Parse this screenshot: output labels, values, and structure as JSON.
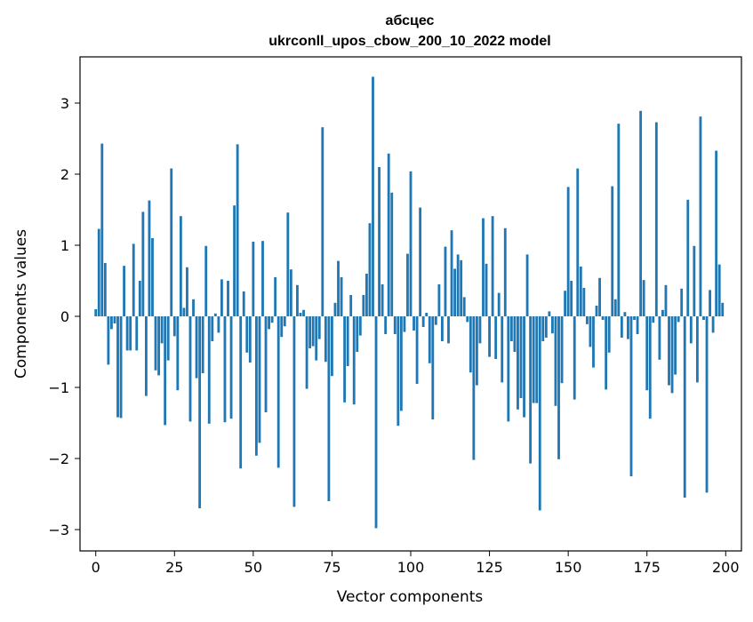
{
  "chart_data": {
    "type": "bar",
    "title": "абсцес",
    "subtitle": "ukrconll_upos_cbow_200_10_2022 model",
    "xlabel": "Vector components",
    "ylabel": "Components values",
    "xlim": [
      -5,
      205
    ],
    "ylim": [
      -3.3,
      3.65
    ],
    "xticks": [
      0,
      25,
      50,
      75,
      100,
      125,
      150,
      175,
      200
    ],
    "yticks": [
      -3,
      -2,
      -1,
      0,
      1,
      2,
      3
    ],
    "ytick_labels": [
      "−3",
      "−2",
      "−1",
      "0",
      "1",
      "2",
      "3"
    ],
    "grid": false,
    "bar_color": "#1f77b4",
    "x": [
      0,
      1,
      2,
      3,
      4,
      5,
      6,
      7,
      8,
      9,
      10,
      11,
      12,
      13,
      14,
      15,
      16,
      17,
      18,
      19,
      20,
      21,
      22,
      23,
      24,
      25,
      26,
      27,
      28,
      29,
      30,
      31,
      32,
      33,
      34,
      35,
      36,
      37,
      38,
      39,
      40,
      41,
      42,
      43,
      44,
      45,
      46,
      47,
      48,
      49,
      50,
      51,
      52,
      53,
      54,
      55,
      56,
      57,
      58,
      59,
      60,
      61,
      62,
      63,
      64,
      65,
      66,
      67,
      68,
      69,
      70,
      71,
      72,
      73,
      74,
      75,
      76,
      77,
      78,
      79,
      80,
      81,
      82,
      83,
      84,
      85,
      86,
      87,
      88,
      89,
      90,
      91,
      92,
      93,
      94,
      95,
      96,
      97,
      98,
      99,
      100,
      101,
      102,
      103,
      104,
      105,
      106,
      107,
      108,
      109,
      110,
      111,
      112,
      113,
      114,
      115,
      116,
      117,
      118,
      119,
      120,
      121,
      122,
      123,
      124,
      125,
      126,
      127,
      128,
      129,
      130,
      131,
      132,
      133,
      134,
      135,
      136,
      137,
      138,
      139,
      140,
      141,
      142,
      143,
      144,
      145,
      146,
      147,
      148,
      149,
      150,
      151,
      152,
      153,
      154,
      155,
      156,
      157,
      158,
      159,
      160,
      161,
      162,
      163,
      164,
      165,
      166,
      167,
      168,
      169,
      170,
      171,
      172,
      173,
      174,
      175,
      176,
      177,
      178,
      179,
      180,
      181,
      182,
      183,
      184,
      185,
      186,
      187,
      188,
      189,
      190,
      191,
      192,
      193,
      194,
      195,
      196,
      197,
      198,
      199
    ],
    "values": [
      0.1,
      1.23,
      2.43,
      0.75,
      -0.68,
      -0.18,
      -0.1,
      -1.42,
      -1.43,
      0.71,
      -0.48,
      -0.48,
      1.02,
      -0.48,
      0.5,
      1.47,
      -1.12,
      1.63,
      1.1,
      -0.76,
      -0.83,
      -0.38,
      -1.53,
      -0.62,
      2.08,
      -0.28,
      -1.04,
      1.41,
      0.12,
      0.69,
      -1.48,
      0.24,
      -0.87,
      -2.7,
      -0.8,
      0.99,
      -1.51,
      -0.35,
      0.04,
      -0.23,
      0.52,
      -1.49,
      0.5,
      -1.44,
      1.56,
      2.42,
      -2.14,
      0.35,
      -0.51,
      -0.65,
      1.05,
      -1.96,
      -1.78,
      1.06,
      -1.35,
      -0.18,
      -0.09,
      0.55,
      -2.13,
      -0.29,
      -0.14,
      1.46,
      0.66,
      -2.68,
      0.44,
      0.05,
      0.09,
      -1.02,
      -0.45,
      -0.42,
      -0.62,
      -0.32,
      2.66,
      -0.64,
      -2.6,
      -0.84,
      0.19,
      0.78,
      0.55,
      -1.21,
      -0.7,
      0.3,
      -1.24,
      -0.5,
      -0.27,
      0.3,
      0.6,
      1.31,
      3.37,
      -2.98,
      2.1,
      0.45,
      -0.25,
      2.29,
      1.74,
      -0.25,
      -1.54,
      -1.33,
      -0.22,
      0.88,
      2.04,
      -0.2,
      -0.95,
      1.53,
      -0.15,
      0.05,
      -0.66,
      -1.45,
      -0.12,
      0.45,
      -0.35,
      0.98,
      -0.38,
      1.21,
      0.67,
      0.87,
      0.79,
      0.27,
      -0.08,
      -0.79,
      -2.02,
      -0.97,
      -0.38,
      1.38,
      0.74,
      -0.57,
      1.41,
      -0.6,
      0.33,
      -0.93,
      1.24,
      -1.48,
      -0.35,
      -0.5,
      -1.31,
      -1.15,
      -1.42,
      0.87,
      -2.07,
      -1.22,
      -1.22,
      -2.73,
      -0.35,
      -0.3,
      0.07,
      -0.24,
      -1.26,
      -2.01,
      -0.94,
      0.36,
      1.82,
      0.5,
      -1.17,
      2.08,
      0.7,
      0.4,
      -0.11,
      -0.43,
      -0.72,
      0.15,
      0.54,
      -0.05,
      -1.03,
      -0.51,
      1.83,
      0.24,
      2.71,
      -0.3,
      0.06,
      -0.32,
      -2.25,
      -0.05,
      -0.25,
      2.89,
      0.51,
      -1.04,
      -1.44,
      -0.09,
      2.73,
      -0.61,
      0.09,
      0.44,
      -0.97,
      -1.08,
      -0.82,
      -0.08,
      0.39,
      -2.55,
      1.64,
      -0.38,
      0.99,
      -0.93,
      2.81,
      -0.05,
      -2.48,
      0.37,
      -0.23,
      2.33,
      0.73,
      0.19
    ]
  }
}
